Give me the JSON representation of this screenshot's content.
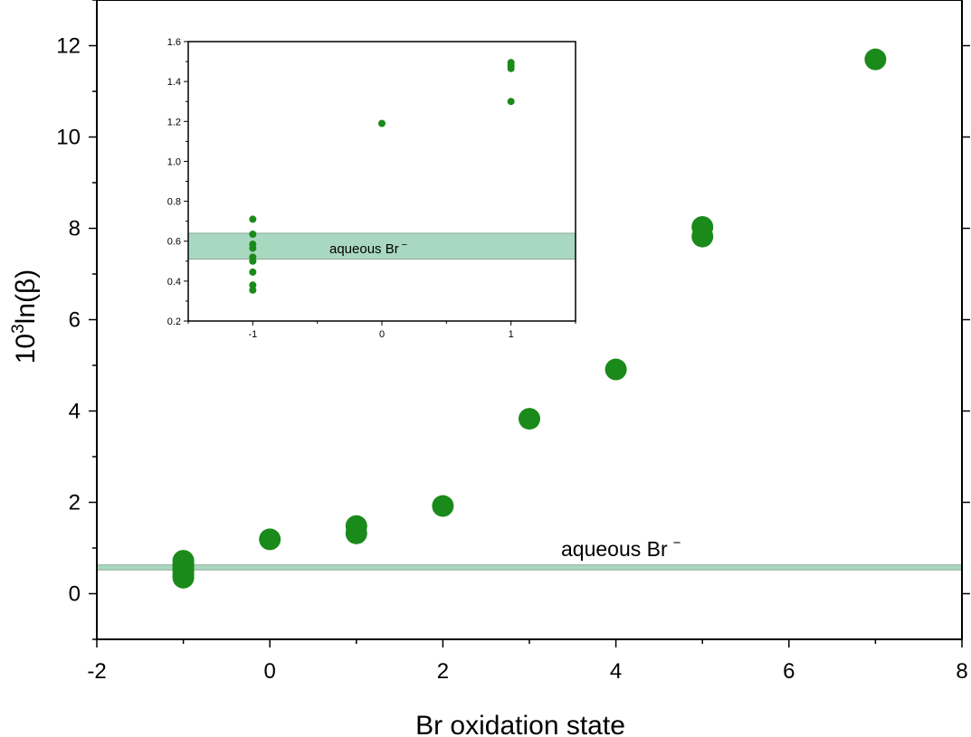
{
  "chart_data": [
    {
      "type": "scatter",
      "xlabel": "Br oxidation state",
      "ylabel_base": "10",
      "ylabel_sup": "3",
      "ylabel_rest": "ln(β)",
      "xlim": [
        -2,
        8
      ],
      "ylim": [
        -1,
        13
      ],
      "xticks": [
        -2,
        0,
        2,
        4,
        6,
        8
      ],
      "yticks": [
        0,
        2,
        4,
        6,
        8,
        10,
        12
      ],
      "grid": false,
      "marker_color": "#1a8a1a",
      "band": {
        "ymin": 0.52,
        "ymax": 0.63,
        "color": "#a9d8c0",
        "edge_color": "#8fa89a",
        "label_text": "aqueous Br",
        "label_sup": "−"
      },
      "series": [
        {
          "points": [
            {
              "x": -1,
              "y": 0.35
            },
            {
              "x": -1,
              "y": 0.42
            },
            {
              "x": -1,
              "y": 0.5
            },
            {
              "x": -1,
              "y": 0.55
            },
            {
              "x": -1,
              "y": 0.6
            },
            {
              "x": -1,
              "y": 0.65
            },
            {
              "x": -1,
              "y": 0.72
            },
            {
              "x": 0,
              "y": 1.19
            },
            {
              "x": 1,
              "y": 1.32
            },
            {
              "x": 1,
              "y": 1.48
            },
            {
              "x": 2,
              "y": 1.92
            },
            {
              "x": 3,
              "y": 3.83
            },
            {
              "x": 4,
              "y": 4.91
            },
            {
              "x": 5,
              "y": 7.82
            },
            {
              "x": 5,
              "y": 8.03
            },
            {
              "x": 7,
              "y": 11.7
            }
          ]
        }
      ]
    },
    {
      "type": "scatter",
      "xlim": [
        -1.5,
        1.5
      ],
      "ylim": [
        0.2,
        1.6
      ],
      "xticks": [
        -1,
        0,
        1
      ],
      "yticks": [
        0.2,
        0.4,
        0.6,
        0.8,
        1.0,
        1.2,
        1.4,
        1.6
      ],
      "xtick_labels": [
        "-1",
        "0",
        "1"
      ],
      "ytick_labels": [
        "0.2",
        "0.4",
        "0.6",
        "0.8",
        "1.0",
        "1.2",
        "1.4",
        "1.6"
      ],
      "grid": false,
      "band": {
        "ymin": 0.51,
        "ymax": 0.64,
        "label_text": "aqueous Br",
        "label_sup": "−"
      },
      "series": [
        {
          "points": [
            {
              "x": -1,
              "y": 0.355
            },
            {
              "x": -1,
              "y": 0.38
            },
            {
              "x": -1,
              "y": 0.445
            },
            {
              "x": -1,
              "y": 0.5
            },
            {
              "x": -1,
              "y": 0.52
            },
            {
              "x": -1,
              "y": 0.565
            },
            {
              "x": -1,
              "y": 0.585
            },
            {
              "x": -1,
              "y": 0.635
            },
            {
              "x": -1,
              "y": 0.71
            },
            {
              "x": 0,
              "y": 1.19
            },
            {
              "x": 1,
              "y": 1.3
            },
            {
              "x": 1,
              "y": 1.465
            },
            {
              "x": 1,
              "y": 1.48
            },
            {
              "x": 1,
              "y": 1.495
            }
          ]
        }
      ]
    }
  ]
}
